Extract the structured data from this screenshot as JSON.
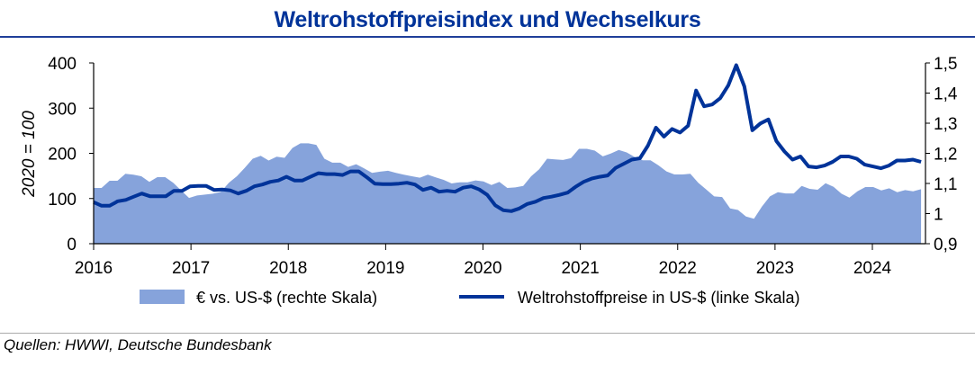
{
  "chart_data": {
    "type": "area+line",
    "title": "Weltrohstoffpreisindex und Wechselkurs",
    "ylabel_left": "2020 = 100",
    "ylabel_right": "",
    "x_range": [
      "2016-01",
      "2024-07"
    ],
    "x_ticks": [
      "2016",
      "2017",
      "2018",
      "2019",
      "2020",
      "2021",
      "2022",
      "2023",
      "2024"
    ],
    "y_left": {
      "min": 0,
      "max": 400,
      "ticks": [
        "0",
        "100",
        "200",
        "300",
        "400"
      ]
    },
    "y_right": {
      "min": 0.9,
      "max": 1.5,
      "ticks": [
        "0,9",
        "1",
        "1,1",
        "1,2",
        "1,3",
        "1,4",
        "1,5"
      ]
    },
    "series": [
      {
        "name": "€ vs. US-$ (rechte Skala)",
        "type": "area",
        "axis": "right",
        "color": "#86a3db",
        "values": [
          1.085,
          1.085,
          1.109,
          1.109,
          1.132,
          1.129,
          1.124,
          1.105,
          1.121,
          1.121,
          1.102,
          1.077,
          1.052,
          1.06,
          1.063,
          1.066,
          1.072,
          1.102,
          1.124,
          1.152,
          1.182,
          1.192,
          1.176,
          1.189,
          1.185,
          1.218,
          1.233,
          1.233,
          1.228,
          1.182,
          1.169,
          1.169,
          1.155,
          1.164,
          1.15,
          1.135,
          1.139,
          1.142,
          1.135,
          1.129,
          1.124,
          1.119,
          1.129,
          1.12,
          1.112,
          1.1,
          1.104,
          1.104,
          1.11,
          1.107,
          1.095,
          1.105,
          1.085,
          1.087,
          1.092,
          1.124,
          1.147,
          1.182,
          1.18,
          1.178,
          1.184,
          1.215,
          1.215,
          1.209,
          1.19,
          1.199,
          1.211,
          1.203,
          1.188,
          1.177,
          1.177,
          1.16,
          1.14,
          1.13,
          1.13,
          1.132,
          1.102,
          1.08,
          1.057,
          1.055,
          1.017,
          1.012,
          0.99,
          0.983,
          1.023,
          1.057,
          1.071,
          1.067,
          1.067,
          1.092,
          1.082,
          1.079,
          1.101,
          1.089,
          1.066,
          1.053,
          1.074,
          1.088,
          1.088,
          1.077,
          1.084,
          1.071,
          1.078,
          1.074,
          1.081
        ]
      },
      {
        "name": "Weltrohstoffpreise in US-$ (linke Skala)",
        "type": "line",
        "axis": "left",
        "color": "#003399",
        "values": [
          92,
          84,
          84,
          94,
          97,
          104,
          111,
          105,
          105,
          105,
          117,
          117,
          127,
          128,
          128,
          119,
          120,
          118,
          111,
          117,
          127,
          131,
          137,
          140,
          148,
          140,
          140,
          148,
          156,
          154,
          154,
          152,
          160,
          160,
          147,
          133,
          132,
          132,
          133,
          135,
          131,
          119,
          124,
          115,
          117,
          115,
          124,
          127,
          120,
          108,
          85,
          74,
          72,
          78,
          88,
          93,
          101,
          104,
          108,
          113,
          126,
          137,
          144,
          148,
          151,
          168,
          177,
          186,
          189,
          217,
          257,
          237,
          254,
          246,
          261,
          339,
          304,
          308,
          322,
          350,
          395,
          348,
          251,
          266,
          275,
          227,
          204,
          186,
          193,
          171,
          169,
          173,
          181,
          193,
          193,
          188,
          175,
          171,
          167,
          173,
          184,
          184,
          186,
          181
        ]
      }
    ],
    "legend": "bottom",
    "grid": false
  },
  "source": "Quellen: HWWI, Deutsche Bundesbank"
}
